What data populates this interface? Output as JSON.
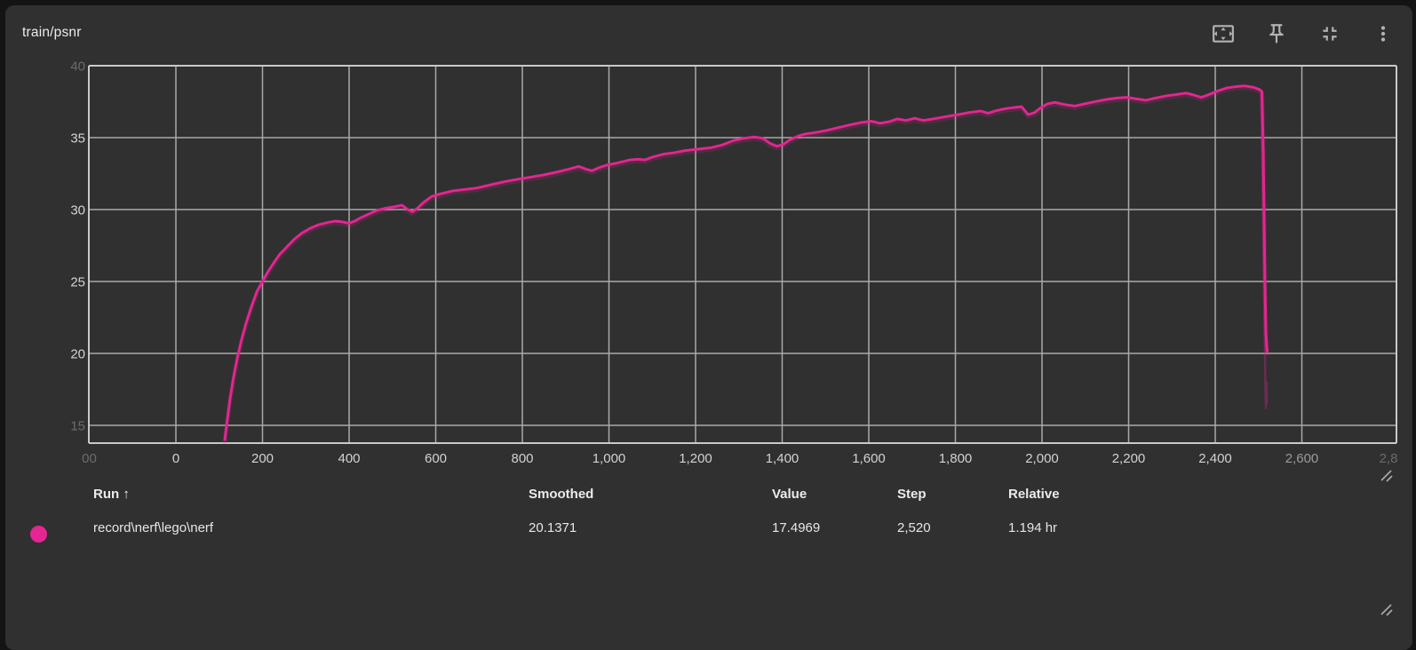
{
  "header": {
    "title": "train/psnr",
    "actions": [
      {
        "name": "fit-domain"
      },
      {
        "name": "pin"
      },
      {
        "name": "collapse"
      },
      {
        "name": "more-options"
      }
    ]
  },
  "chart_data": {
    "type": "line",
    "title": "train/psnr",
    "grid": true,
    "xlim": [
      -207,
      2818
    ],
    "ylim": [
      13.7,
      40.3
    ],
    "x_ticks": [
      {
        "label": "00",
        "step": -200,
        "emphasis": "dim"
      },
      {
        "label": "0",
        "step": 0,
        "emphasis": "bright"
      },
      {
        "label": "200",
        "step": 200,
        "emphasis": "bright"
      },
      {
        "label": "400",
        "step": 400,
        "emphasis": "bright"
      },
      {
        "label": "600",
        "step": 600,
        "emphasis": "bright"
      },
      {
        "label": "800",
        "step": 800,
        "emphasis": "bright"
      },
      {
        "label": "1,000",
        "step": 1000,
        "emphasis": "bright"
      },
      {
        "label": "1,200",
        "step": 1200,
        "emphasis": "bright"
      },
      {
        "label": "1,400",
        "step": 1400,
        "emphasis": "bright"
      },
      {
        "label": "1,600",
        "step": 1600,
        "emphasis": "bright"
      },
      {
        "label": "1,800",
        "step": 1800,
        "emphasis": "bright"
      },
      {
        "label": "2,000",
        "step": 2000,
        "emphasis": "bright"
      },
      {
        "label": "2,200",
        "step": 2200,
        "emphasis": "bright"
      },
      {
        "label": "2,400",
        "step": 2400,
        "emphasis": "bright"
      },
      {
        "label": "2,600",
        "step": 2600,
        "emphasis": "mid"
      },
      {
        "label": "2,8",
        "step": 2800,
        "emphasis": "dim"
      }
    ],
    "y_ticks": [
      {
        "label": "40",
        "value": 40,
        "emphasis": "dim"
      },
      {
        "label": "35",
        "value": 35,
        "emphasis": "bright"
      },
      {
        "label": "30",
        "value": 30,
        "emphasis": "bright"
      },
      {
        "label": "25",
        "value": 25,
        "emphasis": "bright"
      },
      {
        "label": "20",
        "value": 20,
        "emphasis": "bright"
      },
      {
        "label": "15",
        "value": 15,
        "emphasis": "dim"
      }
    ],
    "series": [
      {
        "name": "record\\nerf\\lego\\nerf",
        "color": "#e52592",
        "smoothed_points": [
          [
            113,
            14.0
          ],
          [
            118,
            15.2
          ],
          [
            125,
            16.8
          ],
          [
            133,
            18.3
          ],
          [
            142,
            19.7
          ],
          [
            152,
            21.0
          ],
          [
            163,
            22.2
          ],
          [
            175,
            23.3
          ],
          [
            188,
            24.35
          ],
          [
            200,
            25.0
          ],
          [
            213,
            25.7
          ],
          [
            226,
            26.3
          ],
          [
            240,
            26.9
          ],
          [
            256,
            27.4
          ],
          [
            272,
            27.9
          ],
          [
            290,
            28.35
          ],
          [
            310,
            28.7
          ],
          [
            330,
            28.95
          ],
          [
            350,
            29.1
          ],
          [
            368,
            29.2
          ],
          [
            384,
            29.15
          ],
          [
            400,
            29.05
          ],
          [
            413,
            29.2
          ],
          [
            428,
            29.45
          ],
          [
            446,
            29.7
          ],
          [
            465,
            29.95
          ],
          [
            485,
            30.1
          ],
          [
            505,
            30.2
          ],
          [
            522,
            30.3
          ],
          [
            536,
            30.0
          ],
          [
            546,
            29.85
          ],
          [
            558,
            30.1
          ],
          [
            572,
            30.5
          ],
          [
            590,
            30.9
          ],
          [
            612,
            31.1
          ],
          [
            640,
            31.3
          ],
          [
            668,
            31.4
          ],
          [
            695,
            31.5
          ],
          [
            716,
            31.65
          ],
          [
            738,
            31.8
          ],
          [
            760,
            31.95
          ],
          [
            788,
            32.1
          ],
          [
            818,
            32.25
          ],
          [
            848,
            32.4
          ],
          [
            878,
            32.6
          ],
          [
            906,
            32.8
          ],
          [
            930,
            33.0
          ],
          [
            948,
            32.8
          ],
          [
            961,
            32.7
          ],
          [
            976,
            32.9
          ],
          [
            996,
            33.1
          ],
          [
            1020,
            33.25
          ],
          [
            1048,
            33.45
          ],
          [
            1068,
            33.5
          ],
          [
            1083,
            33.45
          ],
          [
            1100,
            33.65
          ],
          [
            1126,
            33.85
          ],
          [
            1150,
            33.95
          ],
          [
            1176,
            34.1
          ],
          [
            1205,
            34.2
          ],
          [
            1236,
            34.3
          ],
          [
            1262,
            34.5
          ],
          [
            1288,
            34.8
          ],
          [
            1310,
            34.95
          ],
          [
            1336,
            35.05
          ],
          [
            1356,
            34.95
          ],
          [
            1372,
            34.6
          ],
          [
            1388,
            34.4
          ],
          [
            1403,
            34.55
          ],
          [
            1418,
            34.85
          ],
          [
            1436,
            35.1
          ],
          [
            1453,
            35.25
          ],
          [
            1476,
            35.35
          ],
          [
            1502,
            35.5
          ],
          [
            1530,
            35.7
          ],
          [
            1558,
            35.9
          ],
          [
            1582,
            36.05
          ],
          [
            1605,
            36.15
          ],
          [
            1626,
            36.0
          ],
          [
            1646,
            36.1
          ],
          [
            1666,
            36.3
          ],
          [
            1686,
            36.2
          ],
          [
            1706,
            36.35
          ],
          [
            1726,
            36.2
          ],
          [
            1748,
            36.3
          ],
          [
            1776,
            36.45
          ],
          [
            1806,
            36.6
          ],
          [
            1832,
            36.75
          ],
          [
            1858,
            36.85
          ],
          [
            1876,
            36.7
          ],
          [
            1891,
            36.85
          ],
          [
            1913,
            37.0
          ],
          [
            1936,
            37.1
          ],
          [
            1953,
            37.15
          ],
          [
            1968,
            36.6
          ],
          [
            1983,
            36.75
          ],
          [
            1998,
            37.1
          ],
          [
            2013,
            37.35
          ],
          [
            2030,
            37.45
          ],
          [
            2052,
            37.3
          ],
          [
            2076,
            37.2
          ],
          [
            2098,
            37.35
          ],
          [
            2122,
            37.5
          ],
          [
            2148,
            37.65
          ],
          [
            2172,
            37.75
          ],
          [
            2196,
            37.8
          ],
          [
            2218,
            37.7
          ],
          [
            2240,
            37.6
          ],
          [
            2262,
            37.75
          ],
          [
            2286,
            37.9
          ],
          [
            2310,
            38.0
          ],
          [
            2333,
            38.1
          ],
          [
            2352,
            37.95
          ],
          [
            2368,
            37.8
          ],
          [
            2386,
            38.0
          ],
          [
            2406,
            38.25
          ],
          [
            2426,
            38.45
          ],
          [
            2448,
            38.55
          ],
          [
            2468,
            38.6
          ],
          [
            2488,
            38.5
          ],
          [
            2502,
            38.35
          ],
          [
            2508,
            38.2
          ],
          [
            2511,
            34.0
          ],
          [
            2513,
            29.0
          ],
          [
            2515,
            24.5
          ],
          [
            2517,
            21.5
          ],
          [
            2519,
            20.4
          ],
          [
            2520,
            20.14
          ]
        ],
        "raw_tail_points": [
          [
            2506,
            38.2
          ],
          [
            2510,
            31.0
          ],
          [
            2513,
            24.0
          ],
          [
            2516,
            17.5
          ],
          [
            2517,
            16.2
          ],
          [
            2518.5,
            18.0
          ],
          [
            2519.5,
            16.6
          ]
        ]
      }
    ]
  },
  "summary": {
    "columns": [
      {
        "label": "Run ↑"
      },
      {
        "label": "Smoothed"
      },
      {
        "label": "Value"
      },
      {
        "label": "Step"
      },
      {
        "label": "Relative"
      }
    ],
    "row": {
      "run": "record\\nerf\\lego\\nerf",
      "smoothed": "20.1371",
      "value": "17.4969",
      "step": "2,520",
      "relative": "1.194 hr",
      "color": "#e52592"
    }
  },
  "colors": {
    "page_bg": "#141414",
    "card_bg": "#303030",
    "gridline": "#a9a9a9",
    "axis_border": "#c9c9c9",
    "tick_bright": "#d2d2d2",
    "tick_mid": "#9a9a9a",
    "tick_dim": "#6b6b6b",
    "series_pink": "#e52592",
    "icon": "#b3b3b3"
  }
}
